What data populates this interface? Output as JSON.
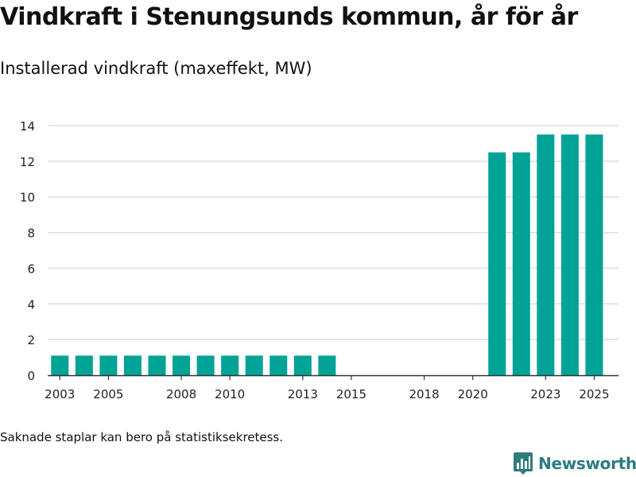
{
  "header": {
    "title": "Vindkraft i Stenungsunds kommun, år för år",
    "subtitle": "Installerad vindkraft (maxeffekt, MW)"
  },
  "footer": {
    "note": "Saknade staplar kan bero på statistiksekretess.",
    "brand": "Newsworthy",
    "brand_icon": "bar-chart-logo-icon"
  },
  "colors": {
    "bar": "#00a396",
    "grid": "#dddddd",
    "axis": "#333333",
    "brand": "#2e7c80"
  },
  "chart_data": {
    "type": "bar",
    "title": "Vindkraft i Stenungsunds kommun, år för år",
    "subtitle": "Installerad vindkraft (maxeffekt, MW)",
    "xlabel": "",
    "ylabel": "",
    "ylim": [
      0,
      14
    ],
    "yticks": [
      0,
      2,
      4,
      6,
      8,
      10,
      12,
      14
    ],
    "xticks": [
      2003,
      2005,
      2008,
      2010,
      2013,
      2015,
      2018,
      2020,
      2023,
      2025
    ],
    "grid": true,
    "categories": [
      2003,
      2004,
      2005,
      2006,
      2007,
      2008,
      2009,
      2010,
      2011,
      2012,
      2013,
      2014,
      2021,
      2022,
      2023,
      2024,
      2025
    ],
    "values": [
      1.1,
      1.1,
      1.1,
      1.1,
      1.1,
      1.1,
      1.1,
      1.1,
      1.1,
      1.1,
      1.1,
      1.1,
      12.5,
      12.5,
      13.5,
      13.5,
      13.5
    ]
  }
}
